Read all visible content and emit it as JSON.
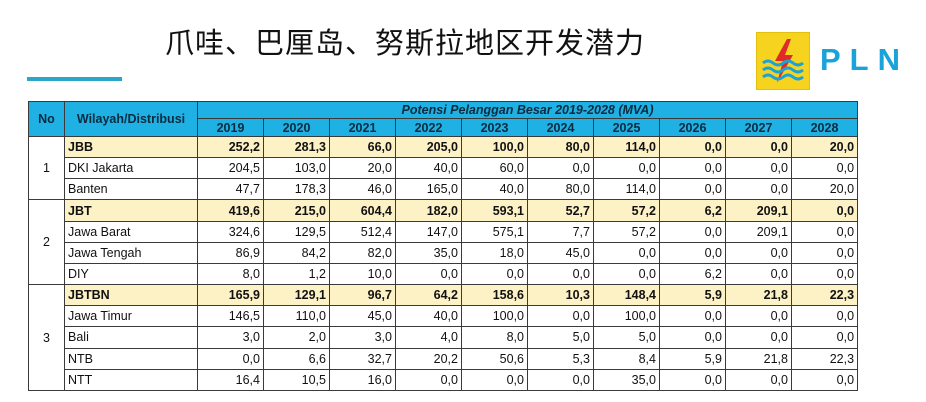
{
  "slide": {
    "title": "爪哇、巴厘岛、努斯拉地区开发潜力",
    "logo_text": "PLN",
    "colors": {
      "accent": "#2aa6c9",
      "header": "#1fb1e3",
      "region_row": "#fdf1c6",
      "logo_yellow": "#f5d31f",
      "logo_blue": "#1aa3d8",
      "logo_red": "#e02a26"
    }
  },
  "table": {
    "col_no": "No",
    "col_region": "Wilayah/Distribusi",
    "super_header": "Potensi Pelanggan Besar 2019-2028 (MVA)",
    "years": [
      "2019",
      "2020",
      "2021",
      "2022",
      "2023",
      "2024",
      "2025",
      "2026",
      "2027",
      "2028"
    ],
    "groups": [
      {
        "no": "1",
        "rows": [
          {
            "name": "JBB",
            "region": true,
            "values": [
              "252,2",
              "281,3",
              "66,0",
              "205,0",
              "100,0",
              "80,0",
              "114,0",
              "0,0",
              "0,0",
              "20,0"
            ]
          },
          {
            "name": "DKI Jakarta",
            "region": false,
            "values": [
              "204,5",
              "103,0",
              "20,0",
              "40,0",
              "60,0",
              "0,0",
              "0,0",
              "0,0",
              "0,0",
              "0,0"
            ]
          },
          {
            "name": "Banten",
            "region": false,
            "values": [
              "47,7",
              "178,3",
              "46,0",
              "165,0",
              "40,0",
              "80,0",
              "114,0",
              "0,0",
              "0,0",
              "20,0"
            ]
          }
        ]
      },
      {
        "no": "2",
        "rows": [
          {
            "name": "JBT",
            "region": true,
            "values": [
              "419,6",
              "215,0",
              "604,4",
              "182,0",
              "593,1",
              "52,7",
              "57,2",
              "6,2",
              "209,1",
              "0,0"
            ]
          },
          {
            "name": "Jawa Barat",
            "region": false,
            "values": [
              "324,6",
              "129,5",
              "512,4",
              "147,0",
              "575,1",
              "7,7",
              "57,2",
              "0,0",
              "209,1",
              "0,0"
            ]
          },
          {
            "name": "Jawa Tengah",
            "region": false,
            "values": [
              "86,9",
              "84,2",
              "82,0",
              "35,0",
              "18,0",
              "45,0",
              "0,0",
              "0,0",
              "0,0",
              "0,0"
            ]
          },
          {
            "name": "DIY",
            "region": false,
            "values": [
              "8,0",
              "1,2",
              "10,0",
              "0,0",
              "0,0",
              "0,0",
              "0,0",
              "6,2",
              "0,0",
              "0,0"
            ]
          }
        ]
      },
      {
        "no": "3",
        "rows": [
          {
            "name": "JBTBN",
            "region": true,
            "values": [
              "165,9",
              "129,1",
              "96,7",
              "64,2",
              "158,6",
              "10,3",
              "148,4",
              "5,9",
              "21,8",
              "22,3"
            ]
          },
          {
            "name": "Jawa Timur",
            "region": false,
            "values": [
              "146,5",
              "110,0",
              "45,0",
              "40,0",
              "100,0",
              "0,0",
              "100,0",
              "0,0",
              "0,0",
              "0,0"
            ]
          },
          {
            "name": "Bali",
            "region": false,
            "values": [
              "3,0",
              "2,0",
              "3,0",
              "4,0",
              "8,0",
              "5,0",
              "5,0",
              "0,0",
              "0,0",
              "0,0"
            ]
          },
          {
            "name": "NTB",
            "region": false,
            "values": [
              "0,0",
              "6,6",
              "32,7",
              "20,2",
              "50,6",
              "5,3",
              "8,4",
              "5,9",
              "21,8",
              "22,3"
            ]
          },
          {
            "name": "NTT",
            "region": false,
            "values": [
              "16,4",
              "10,5",
              "16,0",
              "0,0",
              "0,0",
              "0,0",
              "35,0",
              "0,0",
              "0,0",
              "0,0"
            ]
          }
        ]
      }
    ]
  }
}
